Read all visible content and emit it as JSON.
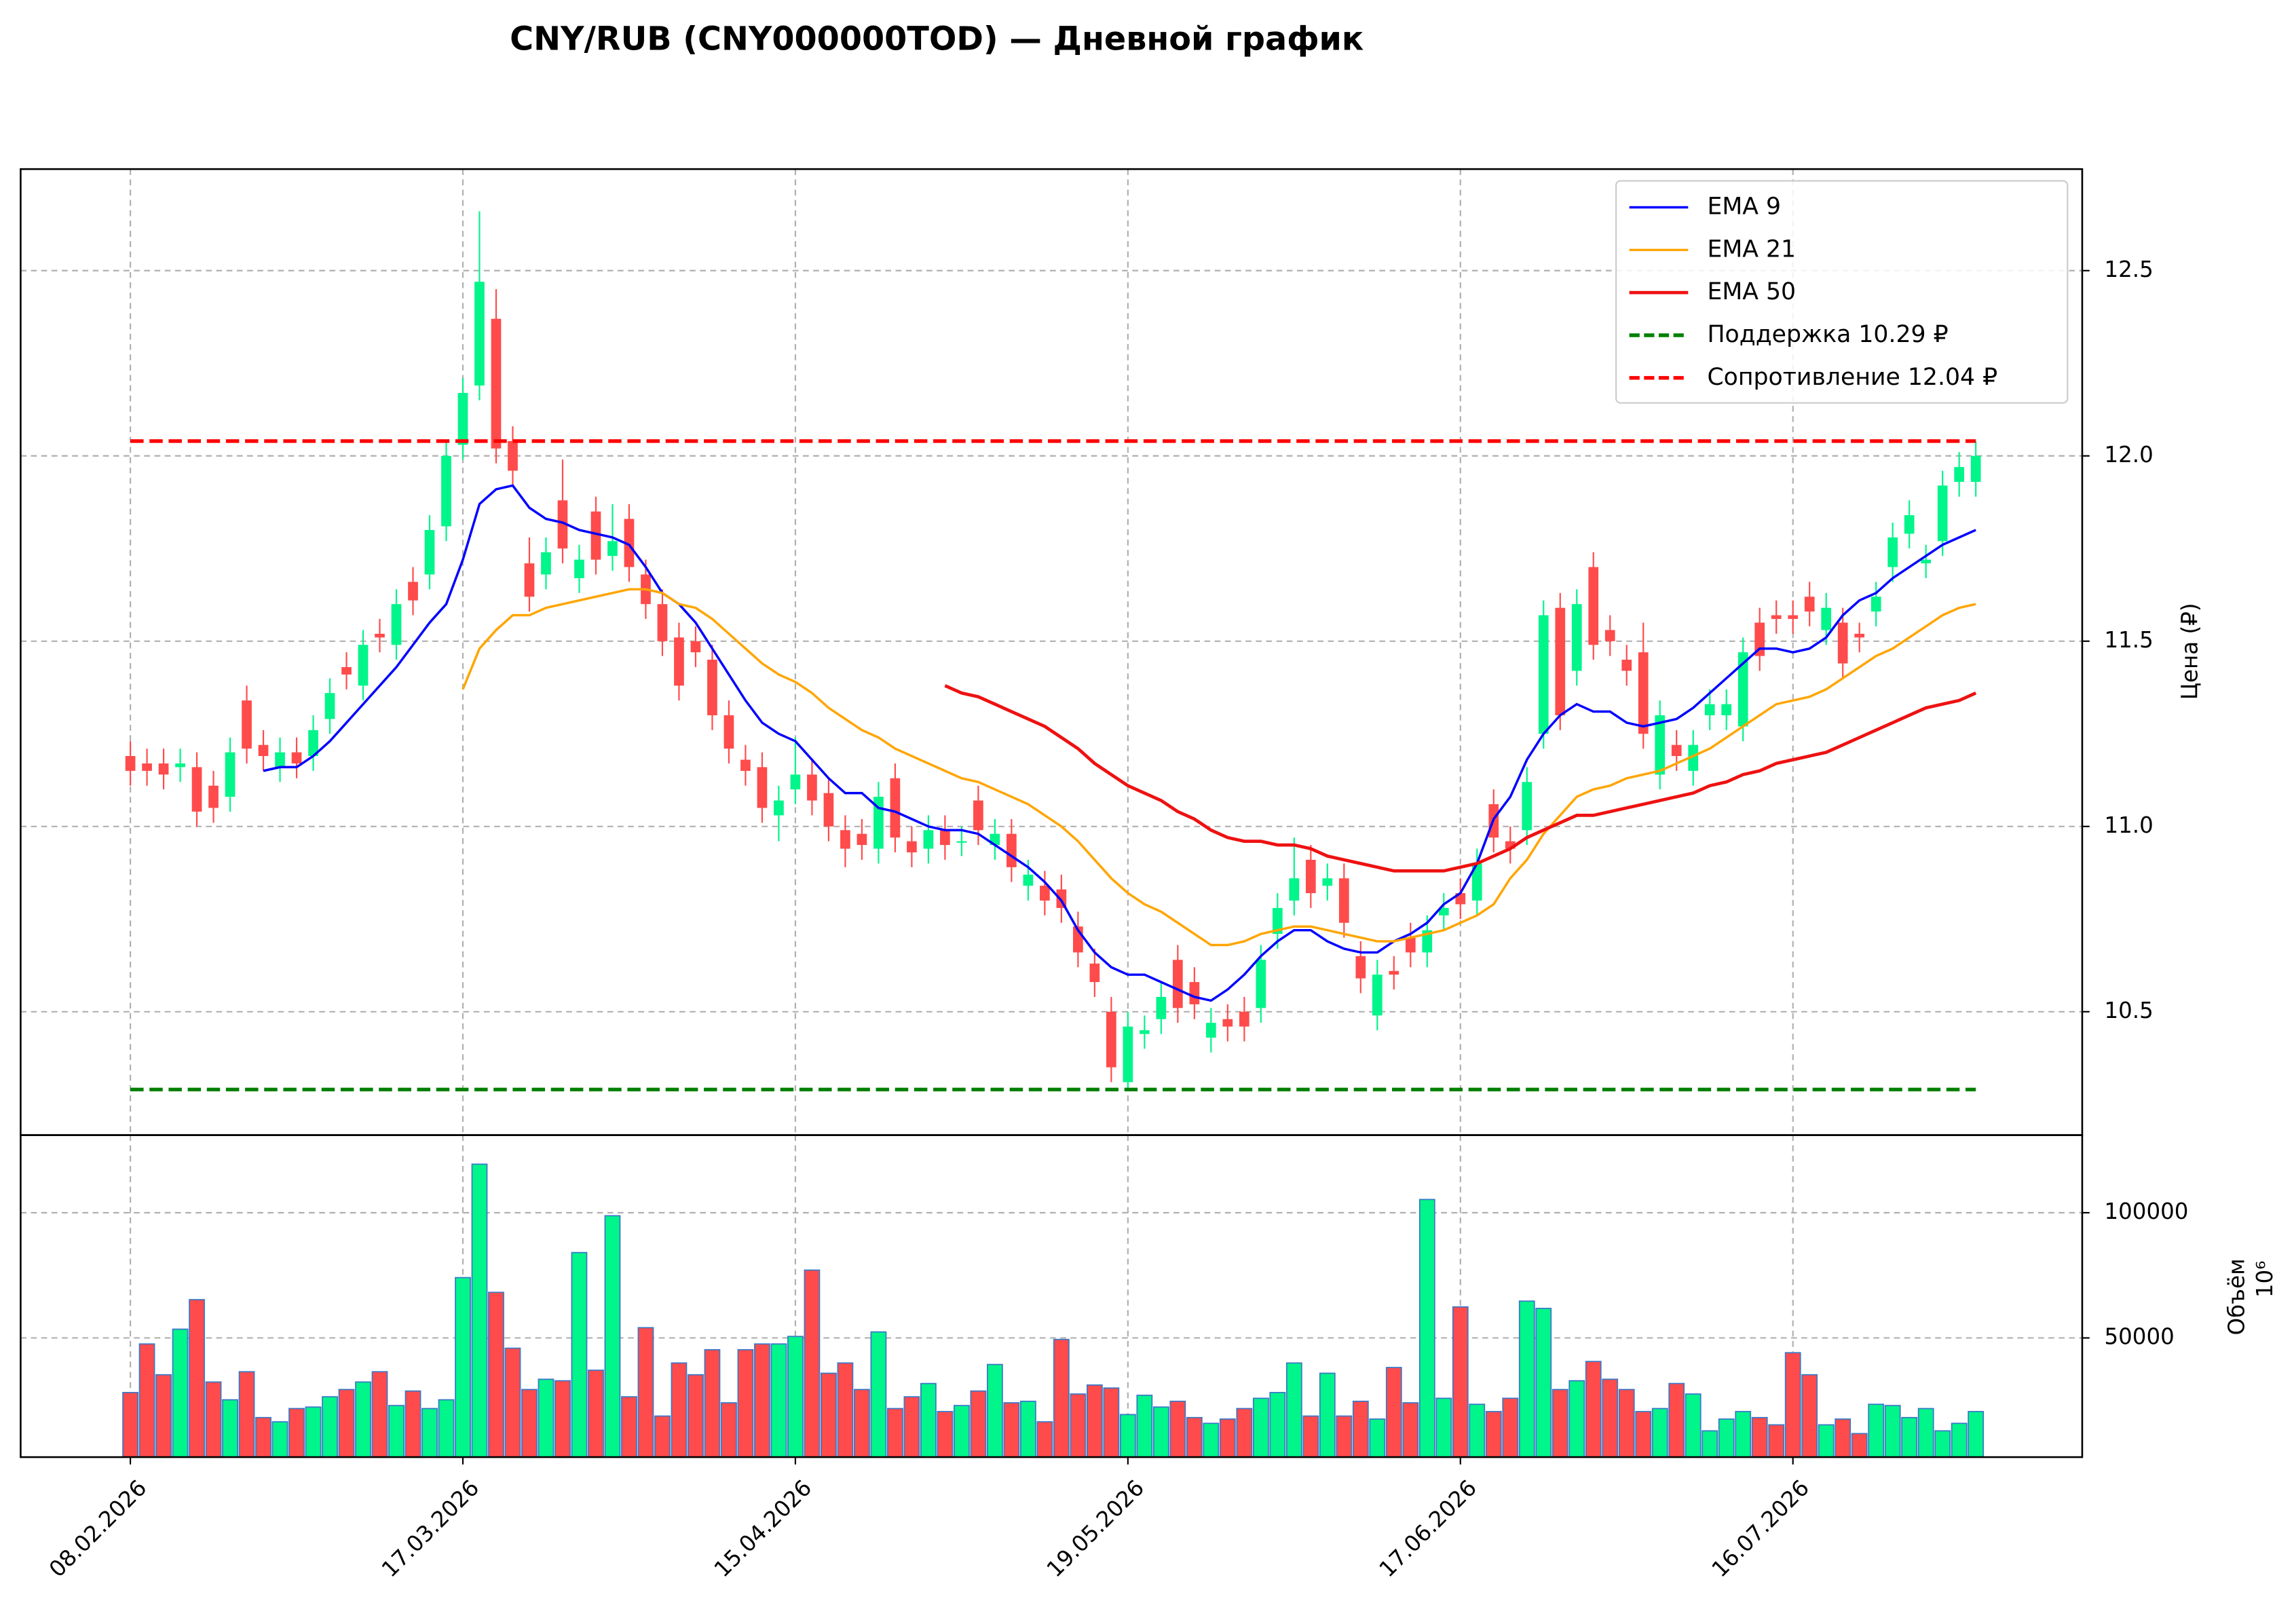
{
  "chart_data": [
    {
      "type": "candlestick",
      "title": "CNY/RUB (CNY000000TOD) — Дневной график",
      "ylabel": "Цена (₽)",
      "open": [
        11.19,
        11.17,
        11.17,
        11.16,
        11.16,
        11.11,
        11.08,
        11.34,
        11.22,
        11.16,
        11.2,
        11.19,
        11.29,
        11.43,
        11.38,
        11.52,
        11.49,
        11.66,
        11.68,
        11.81,
        12.03,
        12.19,
        12.37,
        12.04,
        11.71,
        11.68,
        11.88,
        11.67,
        11.85,
        11.73,
        11.83,
        11.68,
        11.6,
        11.51,
        11.5,
        11.45,
        11.3,
        11.18,
        11.16,
        11.03,
        11.1,
        11.14,
        11.09,
        10.99,
        10.98,
        10.94,
        11.13,
        10.96,
        10.94,
        10.99,
        10.96,
        11.07,
        10.95,
        10.98,
        10.84,
        10.84,
        10.83,
        10.73,
        10.63,
        10.5,
        10.31,
        10.44,
        10.48,
        10.64,
        10.58,
        10.43,
        10.48,
        10.5,
        10.51,
        10.71,
        10.8,
        10.91,
        10.84,
        10.86,
        10.65,
        10.49,
        10.61,
        10.7,
        10.66,
        10.76,
        10.82,
        10.8,
        11.06,
        10.96,
        10.99,
        11.25,
        11.59,
        11.42,
        11.7,
        11.53,
        11.45,
        11.47,
        11.14,
        11.22,
        11.15,
        11.3,
        11.3,
        11.27,
        11.55,
        11.57,
        11.57,
        11.62,
        11.53,
        11.55,
        11.52,
        11.58,
        11.7,
        11.79,
        11.71,
        11.77,
        11.93,
        11.93
      ],
      "high": [
        11.23,
        11.21,
        11.21,
        11.21,
        11.2,
        11.15,
        11.24,
        11.38,
        11.26,
        11.24,
        11.24,
        11.3,
        11.4,
        11.47,
        11.53,
        11.56,
        11.64,
        11.7,
        11.84,
        12.04,
        12.21,
        12.66,
        12.45,
        12.08,
        11.78,
        11.78,
        11.99,
        11.76,
        11.89,
        11.87,
        11.87,
        11.72,
        11.64,
        11.55,
        11.54,
        11.49,
        11.34,
        11.22,
        11.2,
        11.11,
        11.24,
        11.18,
        11.13,
        11.03,
        11.02,
        11.12,
        11.17,
        11.0,
        11.03,
        11.03,
        11.0,
        11.11,
        11.02,
        11.02,
        10.91,
        10.88,
        10.87,
        10.77,
        10.67,
        10.54,
        10.5,
        10.49,
        10.58,
        10.68,
        10.62,
        10.51,
        10.52,
        10.54,
        10.68,
        10.82,
        10.97,
        10.95,
        10.9,
        10.9,
        10.69,
        10.64,
        10.65,
        10.74,
        10.76,
        10.82,
        10.86,
        10.94,
        11.1,
        11.0,
        11.16,
        11.61,
        11.63,
        11.64,
        11.74,
        11.57,
        11.49,
        11.55,
        11.34,
        11.26,
        11.26,
        11.37,
        11.37,
        11.51,
        11.59,
        11.61,
        11.61,
        11.66,
        11.63,
        11.59,
        11.55,
        11.66,
        11.82,
        11.88,
        11.76,
        11.96,
        12.01,
        12.04
      ],
      "low": [
        11.11,
        11.11,
        11.1,
        11.12,
        11.0,
        11.01,
        11.04,
        11.17,
        11.15,
        11.12,
        11.13,
        11.15,
        11.25,
        11.37,
        11.34,
        11.47,
        11.45,
        11.57,
        11.64,
        11.77,
        11.99,
        12.15,
        11.98,
        11.92,
        11.58,
        11.64,
        11.71,
        11.63,
        11.68,
        11.69,
        11.66,
        11.56,
        11.46,
        11.34,
        11.43,
        11.26,
        11.17,
        11.11,
        11.01,
        10.96,
        11.06,
        11.03,
        10.96,
        10.89,
        10.91,
        10.9,
        10.93,
        10.89,
        10.9,
        10.91,
        10.92,
        10.95,
        10.91,
        10.85,
        10.8,
        10.76,
        10.74,
        10.62,
        10.54,
        10.31,
        10.29,
        10.4,
        10.44,
        10.47,
        10.48,
        10.39,
        10.42,
        10.42,
        10.47,
        10.67,
        10.76,
        10.78,
        10.8,
        10.7,
        10.55,
        10.45,
        10.56,
        10.62,
        10.62,
        10.72,
        10.75,
        10.76,
        10.93,
        10.9,
        10.95,
        11.21,
        11.26,
        11.38,
        11.45,
        11.46,
        11.38,
        11.21,
        11.1,
        11.15,
        11.11,
        11.26,
        11.26,
        11.23,
        11.42,
        11.52,
        11.52,
        11.54,
        11.49,
        11.4,
        11.47,
        11.54,
        11.66,
        11.75,
        11.67,
        11.73,
        11.89,
        11.89
      ],
      "close": [
        11.15,
        11.15,
        11.14,
        11.17,
        11.04,
        11.05,
        11.2,
        11.21,
        11.19,
        11.2,
        11.17,
        11.26,
        11.36,
        11.41,
        11.49,
        11.51,
        11.6,
        11.61,
        11.8,
        12.0,
        12.17,
        12.47,
        12.02,
        11.96,
        11.62,
        11.74,
        11.75,
        11.72,
        11.72,
        11.77,
        11.7,
        11.6,
        11.5,
        11.38,
        11.47,
        11.3,
        11.21,
        11.15,
        11.05,
        11.07,
        11.14,
        11.07,
        11.0,
        10.94,
        10.95,
        11.08,
        10.97,
        10.93,
        10.99,
        10.95,
        10.96,
        10.99,
        10.98,
        10.89,
        10.87,
        10.8,
        10.78,
        10.66,
        10.58,
        10.35,
        10.46,
        10.45,
        10.54,
        10.51,
        10.52,
        10.47,
        10.46,
        10.46,
        10.64,
        10.78,
        10.86,
        10.82,
        10.86,
        10.74,
        10.59,
        10.6,
        10.6,
        10.66,
        10.72,
        10.78,
        10.79,
        10.9,
        10.97,
        10.94,
        11.12,
        11.57,
        11.3,
        11.6,
        11.49,
        11.5,
        11.42,
        11.25,
        11.3,
        11.19,
        11.22,
        11.33,
        11.33,
        11.47,
        11.46,
        11.56,
        11.56,
        11.58,
        11.59,
        11.44,
        11.51,
        11.62,
        11.78,
        11.84,
        11.72,
        11.92,
        11.97,
        12.0
      ],
      "up_color": "#00f58a",
      "down_color": "#ff4b4b",
      "series": [
        {
          "name": "EMA 9",
          "color": "#0000ff",
          "values": [
            null,
            null,
            null,
            null,
            null,
            null,
            null,
            null,
            11.15,
            11.16,
            11.16,
            11.19,
            11.23,
            11.28,
            11.33,
            11.38,
            11.43,
            11.49,
            11.55,
            11.6,
            11.72,
            11.87,
            11.91,
            11.92,
            11.86,
            11.83,
            11.82,
            11.8,
            11.79,
            11.78,
            11.76,
            11.7,
            11.63,
            11.6,
            11.55,
            11.48,
            11.41,
            11.34,
            11.28,
            11.25,
            11.23,
            11.18,
            11.13,
            11.09,
            11.09,
            11.05,
            11.04,
            11.02,
            11.0,
            10.99,
            10.99,
            10.98,
            10.95,
            10.92,
            10.89,
            10.85,
            10.8,
            10.72,
            10.66,
            10.62,
            10.6,
            10.6,
            10.58,
            10.56,
            10.54,
            10.53,
            10.56,
            10.6,
            10.65,
            10.69,
            10.72,
            10.72,
            10.69,
            10.67,
            10.66,
            10.66,
            10.69,
            10.71,
            10.74,
            10.79,
            10.82,
            10.9,
            11.02,
            11.08,
            11.18,
            11.25,
            11.3,
            11.33,
            11.31,
            11.31,
            11.28,
            11.27,
            11.28,
            11.29,
            11.32,
            11.36,
            11.4,
            11.44,
            11.48,
            11.48,
            11.47,
            11.48,
            11.51,
            11.57,
            11.61,
            11.63,
            11.67,
            11.7,
            11.73,
            11.76,
            11.78,
            11.8
          ]
        },
        {
          "name": "EMA 21",
          "color": "#ffa500",
          "values": [
            null,
            null,
            null,
            null,
            null,
            null,
            null,
            null,
            null,
            null,
            null,
            null,
            null,
            null,
            null,
            null,
            null,
            null,
            null,
            null,
            11.37,
            11.48,
            11.53,
            11.57,
            11.57,
            11.59,
            11.6,
            11.61,
            11.62,
            11.63,
            11.64,
            11.64,
            11.63,
            11.6,
            11.59,
            11.56,
            11.52,
            11.48,
            11.44,
            11.41,
            11.39,
            11.36,
            11.32,
            11.29,
            11.26,
            11.24,
            11.21,
            11.19,
            11.17,
            11.15,
            11.13,
            11.12,
            11.1,
            11.08,
            11.06,
            11.03,
            11.0,
            10.96,
            10.91,
            10.86,
            10.82,
            10.79,
            10.77,
            10.74,
            10.71,
            10.68,
            10.68,
            10.69,
            10.71,
            10.72,
            10.73,
            10.73,
            10.72,
            10.71,
            10.7,
            10.69,
            10.69,
            10.7,
            10.71,
            10.72,
            10.74,
            10.76,
            10.79,
            10.86,
            10.91,
            10.98,
            11.03,
            11.08,
            11.1,
            11.11,
            11.13,
            11.14,
            11.15,
            11.17,
            11.19,
            11.21,
            11.24,
            11.27,
            11.3,
            11.33,
            11.34,
            11.35,
            11.37,
            11.4,
            11.43,
            11.46,
            11.48,
            11.51,
            11.54,
            11.57,
            11.59,
            11.6
          ]
        },
        {
          "name": "EMA 50",
          "color": "#ee1111",
          "values": [
            null,
            null,
            null,
            null,
            null,
            null,
            null,
            null,
            null,
            null,
            null,
            null,
            null,
            null,
            null,
            null,
            null,
            null,
            null,
            null,
            null,
            null,
            null,
            null,
            null,
            null,
            null,
            null,
            null,
            null,
            null,
            null,
            null,
            null,
            null,
            null,
            null,
            null,
            null,
            null,
            null,
            null,
            null,
            null,
            null,
            null,
            null,
            null,
            null,
            11.38,
            11.36,
            11.35,
            11.33,
            11.31,
            11.29,
            11.27,
            11.24,
            11.21,
            11.17,
            11.14,
            11.11,
            11.09,
            11.07,
            11.04,
            11.02,
            10.99,
            10.97,
            10.96,
            10.96,
            10.95,
            10.95,
            10.94,
            10.92,
            10.91,
            10.9,
            10.89,
            10.88,
            10.88,
            10.88,
            10.88,
            10.89,
            10.9,
            10.92,
            10.94,
            10.97,
            10.99,
            11.01,
            11.03,
            11.03,
            11.04,
            11.05,
            11.06,
            11.07,
            11.08,
            11.09,
            11.11,
            11.12,
            11.14,
            11.15,
            11.17,
            11.18,
            11.19,
            11.2,
            11.22,
            11.24,
            11.26,
            11.28,
            11.3,
            11.32,
            11.33,
            11.34,
            11.36
          ]
        }
      ],
      "levels": [
        {
          "name": "Поддержка 10.29 ₽",
          "value": 10.29,
          "color": "#008000"
        },
        {
          "name": "Сопротивление 12.04 ₽",
          "value": 12.04,
          "color": "#ff0000"
        }
      ],
      "ylim": [
        10.167,
        12.774
      ],
      "yticks": [
        10.5,
        {
          "value": 11,
          "label": "11.0"
        },
        11.5,
        {
          "value": 12,
          "label": "12.0"
        },
        12.5
      ],
      "grid": true,
      "legend": "upper right"
    },
    {
      "type": "bar",
      "ylabel": "Объём",
      "ylabel_multiplier": "10⁶",
      "edge_color": "#3a78c8",
      "values": [
        28200,
        47600,
        35300,
        53500,
        65300,
        32400,
        25300,
        36500,
        18200,
        16500,
        21800,
        22400,
        26500,
        29400,
        32400,
        36500,
        23000,
        28800,
        21800,
        25300,
        74100,
        119400,
        68200,
        45900,
        29400,
        33500,
        32900,
        84100,
        37100,
        98800,
        26500,
        54100,
        18800,
        40000,
        35300,
        45300,
        24100,
        45300,
        47600,
        47600,
        50600,
        77100,
        35900,
        40000,
        29400,
        52400,
        21800,
        26500,
        31800,
        20600,
        23000,
        28800,
        39400,
        24100,
        24700,
        16500,
        49400,
        27600,
        31200,
        30000,
        19400,
        27100,
        22400,
        24700,
        18200,
        15900,
        17600,
        21800,
        25900,
        28200,
        40000,
        18800,
        35900,
        18800,
        24700,
        17600,
        38200,
        24100,
        105300,
        25900,
        62400,
        23500,
        20600,
        25900,
        64700,
        61800,
        29400,
        32900,
        40600,
        33500,
        29400,
        20600,
        21800,
        31800,
        27600,
        12900,
        17600,
        20600,
        18200,
        15300,
        44100,
        35300,
        15300,
        17600,
        11800,
        23500,
        23000,
        18200,
        21800,
        12900,
        15900,
        20600
      ],
      "ylim": [
        2400,
        131000
      ],
      "yticks": [
        50000,
        100000
      ],
      "xlim": [
        -6.6,
        117.4
      ],
      "xticks": [
        {
          "value": 0,
          "label": "08.02.2026"
        },
        {
          "value": 20,
          "label": "17.03.2026"
        },
        {
          "value": 40,
          "label": "15.04.2026"
        },
        {
          "value": 60,
          "label": "19.05.2026"
        },
        {
          "value": 80,
          "label": "17.06.2026"
        },
        {
          "value": 100,
          "label": "16.07.2026"
        }
      ],
      "grid": true
    }
  ]
}
